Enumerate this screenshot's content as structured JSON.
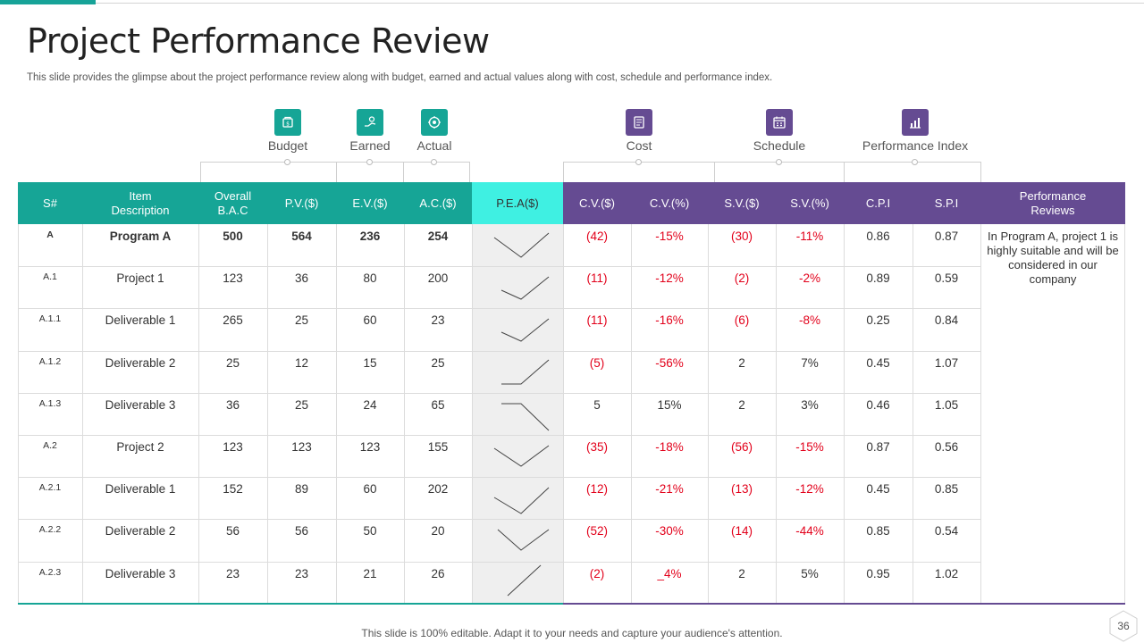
{
  "slide": {
    "title": "Project Performance Review",
    "subtitle": "This slide provides the glimpse about the project performance review along with budget, earned and actual values along with cost, schedule and performance index.",
    "footer": "This slide is 100% editable. Adapt it to your needs and capture your audience's attention.",
    "page_number": "36"
  },
  "groups": [
    {
      "label": "Budget",
      "icon": "budget-icon",
      "color": "#16a596"
    },
    {
      "label": "Earned",
      "icon": "earned-icon",
      "color": "#16a596"
    },
    {
      "label": "Actual",
      "icon": "actual-icon",
      "color": "#16a596"
    },
    {
      "label": "Cost",
      "icon": "cost-icon",
      "color": "#654b92"
    },
    {
      "label": "Schedule",
      "icon": "schedule-icon",
      "color": "#654b92"
    },
    {
      "label": "Performance Index",
      "icon": "performance-index-icon",
      "color": "#654b92"
    }
  ],
  "table": {
    "headers": [
      "S#",
      "Item\nDescription",
      "Overall\nB.A.C",
      "P.V.($)",
      "E.V.($)",
      "A.C.($)",
      "P.E.A($)",
      "C.V.($)",
      "C.V.(%)",
      "S.V.($)",
      "S.V.(%)",
      "C.P.I",
      "S.P.I",
      "Performance\nReviews"
    ],
    "rows": [
      {
        "sn": "A",
        "item": "Program A",
        "bac": "500",
        "pv": "564",
        "ev": "236",
        "ac": "254",
        "cv": "(42)",
        "cvp": "-15%",
        "sv": "(30)",
        "svp": "-11%",
        "cpi": "0.86",
        "spi": "0.87",
        "bold": true,
        "pea_trend": "down-up"
      },
      {
        "sn": "A.1",
        "item": "Project 1",
        "bac": "123",
        "pv": "36",
        "ev": "80",
        "ac": "200",
        "cv": "(11)",
        "cvp": "-12%",
        "sv": "(2)",
        "svp": "-2%",
        "cpi": "0.89",
        "spi": "0.59",
        "bold": false,
        "pea_trend": "down-up"
      },
      {
        "sn": "A.1.1",
        "item": "Deliverable  1",
        "bac": "265",
        "pv": "25",
        "ev": "60",
        "ac": "23",
        "cv": "(11)",
        "cvp": "-16%",
        "sv": "(6)",
        "svp": "-8%",
        "cpi": "0.25",
        "spi": "0.84",
        "bold": false,
        "pea_trend": "down-up"
      },
      {
        "sn": "A.1.2",
        "item": "Deliverable  2",
        "bac": "25",
        "pv": "12",
        "ev": "15",
        "ac": "25",
        "cv": "(5)",
        "cvp": "-56%",
        "sv": "2",
        "svp": "7%",
        "cpi": "0.45",
        "spi": "1.07",
        "bold": false,
        "pea_trend": "flat-up"
      },
      {
        "sn": "A.1.3",
        "item": "Deliverable  3",
        "bac": "36",
        "pv": "25",
        "ev": "24",
        "ac": "65",
        "cv": "5",
        "cvp": "15%",
        "sv": "2",
        "svp": "3%",
        "cpi": "0.46",
        "spi": "1.05",
        "bold": false,
        "pea_trend": "flat-down"
      },
      {
        "sn": "A.2",
        "item": "Project 2",
        "bac": "123",
        "pv": "123",
        "ev": "123",
        "ac": "155",
        "cv": "(35)",
        "cvp": "-18%",
        "sv": "(56)",
        "svp": "-15%",
        "cpi": "0.87",
        "spi": "0.56",
        "bold": false,
        "pea_trend": "down-up"
      },
      {
        "sn": "A.2.1",
        "item": "Deliverable  1",
        "bac": "152",
        "pv": "89",
        "ev": "60",
        "ac": "202",
        "cv": "(12)",
        "cvp": "-21%",
        "sv": "(13)",
        "svp": "-12%",
        "cpi": "0.45",
        "spi": "0.85",
        "bold": false,
        "pea_trend": "down-up"
      },
      {
        "sn": "A.2.2",
        "item": "Deliverable  2",
        "bac": "56",
        "pv": "56",
        "ev": "50",
        "ac": "20",
        "cv": "(52)",
        "cvp": "-30%",
        "sv": "(14)",
        "svp": "-44%",
        "cpi": "0.85",
        "spi": "0.54",
        "bold": false,
        "pea_trend": "down-up"
      },
      {
        "sn": "A.2.3",
        "item": "Deliverable  3",
        "bac": "23",
        "pv": "23",
        "ev": "21",
        "ac": "26",
        "cv": "(2)",
        "cvp": "_4%",
        "sv": "2",
        "svp": "5%",
        "cpi": "0.95",
        "spi": "1.02",
        "bold": false,
        "pea_trend": "up"
      }
    ],
    "review_text": "In Program A, project 1 is highly suitable and will be considered in our company"
  },
  "colors": {
    "teal": "#16a596",
    "cyan": "#3ff0e2",
    "purple": "#654b92",
    "negative": "#e2001a"
  }
}
